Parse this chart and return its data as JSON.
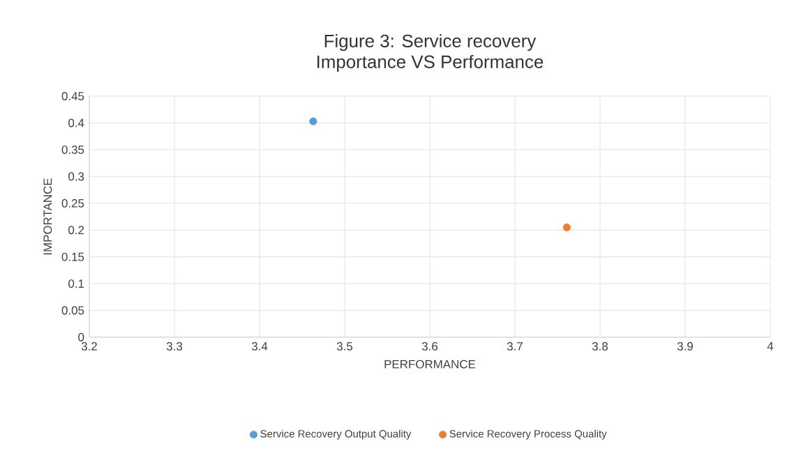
{
  "chart_data": {
    "type": "scatter",
    "title": "Figure 3: Service recovery\nImportance VS Performance",
    "xlabel": "PERFORMANCE",
    "ylabel": "IMPORTANCE",
    "series": [
      {
        "name": "Service Recovery Output Quality",
        "color": "#5b9bd5",
        "x": [
          3.463
        ],
        "values": [
          0.403
        ]
      },
      {
        "name": "Service Recovery Process Quality",
        "color": "#ed7d31",
        "x": [
          3.761
        ],
        "values": [
          0.205
        ]
      }
    ],
    "xlim": [
      3.2,
      4
    ],
    "xticks": [
      3.2,
      3.3,
      3.4,
      3.5,
      3.6,
      3.7,
      3.8,
      3.9,
      4
    ],
    "ylim": [
      0,
      0.45
    ],
    "yticks": [
      0,
      0.05,
      0.1,
      0.15,
      0.2,
      0.25,
      0.3,
      0.35,
      0.4,
      0.45
    ],
    "grid": true,
    "legend": "bottom",
    "marker": "circle"
  }
}
